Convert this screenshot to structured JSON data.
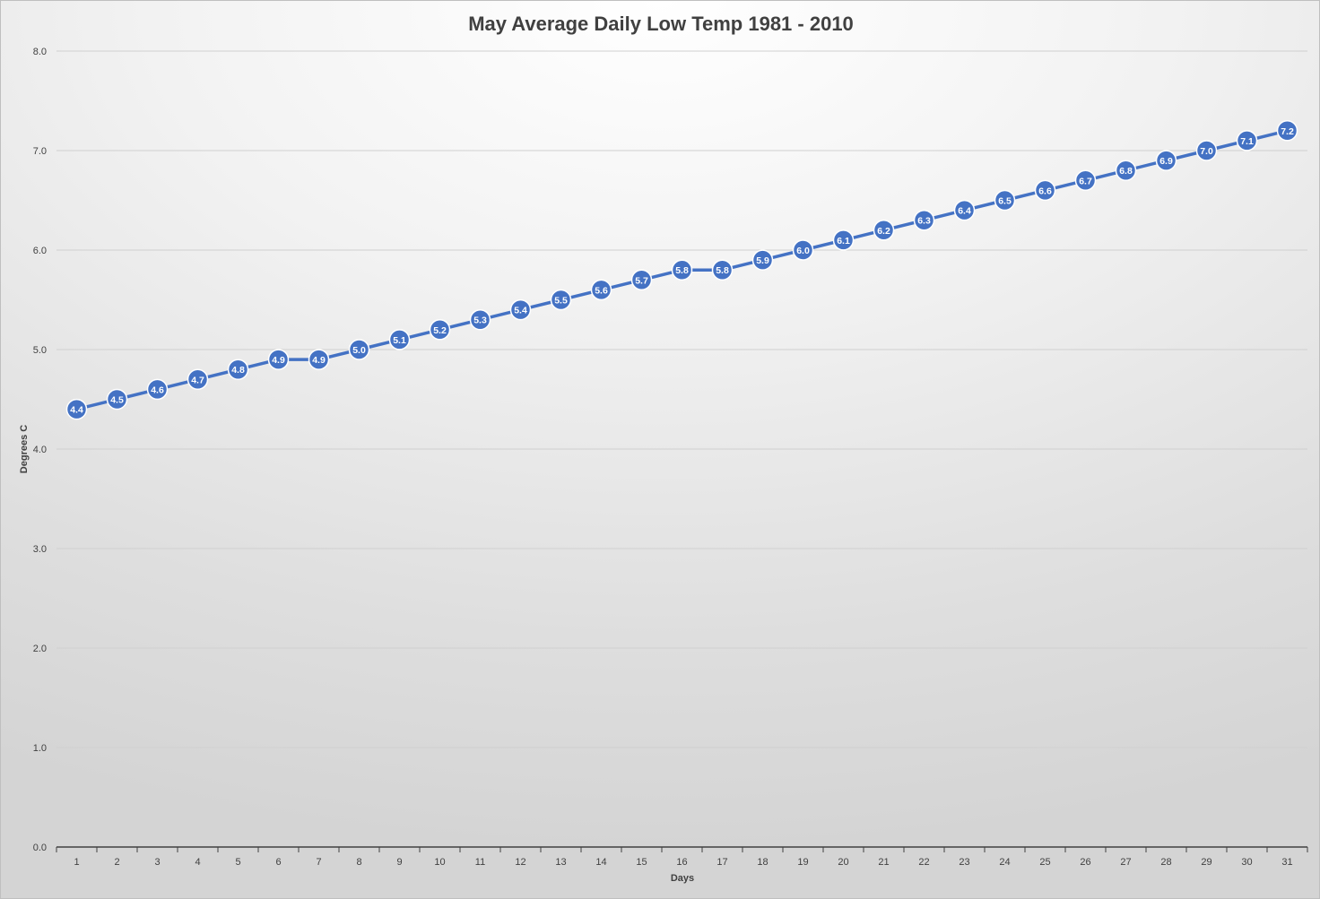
{
  "chart_data": {
    "type": "line",
    "title": "May Average Daily Low Temp 1981 - 2010",
    "xlabel": "Days",
    "ylabel": "Degrees C",
    "x": [
      1,
      2,
      3,
      4,
      5,
      6,
      7,
      8,
      9,
      10,
      11,
      12,
      13,
      14,
      15,
      16,
      17,
      18,
      19,
      20,
      21,
      22,
      23,
      24,
      25,
      26,
      27,
      28,
      29,
      30,
      31
    ],
    "values": [
      4.4,
      4.5,
      4.6,
      4.7,
      4.8,
      4.9,
      4.9,
      5.0,
      5.1,
      5.2,
      5.3,
      5.4,
      5.5,
      5.6,
      5.7,
      5.8,
      5.8,
      5.9,
      6.0,
      6.1,
      6.2,
      6.3,
      6.4,
      6.5,
      6.6,
      6.7,
      6.8,
      6.9,
      7.0,
      7.1,
      7.2
    ],
    "ylim": [
      0,
      8
    ],
    "yticks": [
      "0.0",
      "1.0",
      "2.0",
      "3.0",
      "4.0",
      "5.0",
      "6.0",
      "7.0",
      "8.0"
    ],
    "grid": true,
    "legend": "none",
    "colors": {
      "line": "#4472c4",
      "marker_fill": "#4472c4",
      "marker_stroke": "#ffffff",
      "gridline": "#d0d0d0",
      "axis": "#404040",
      "text": "#404040"
    }
  }
}
